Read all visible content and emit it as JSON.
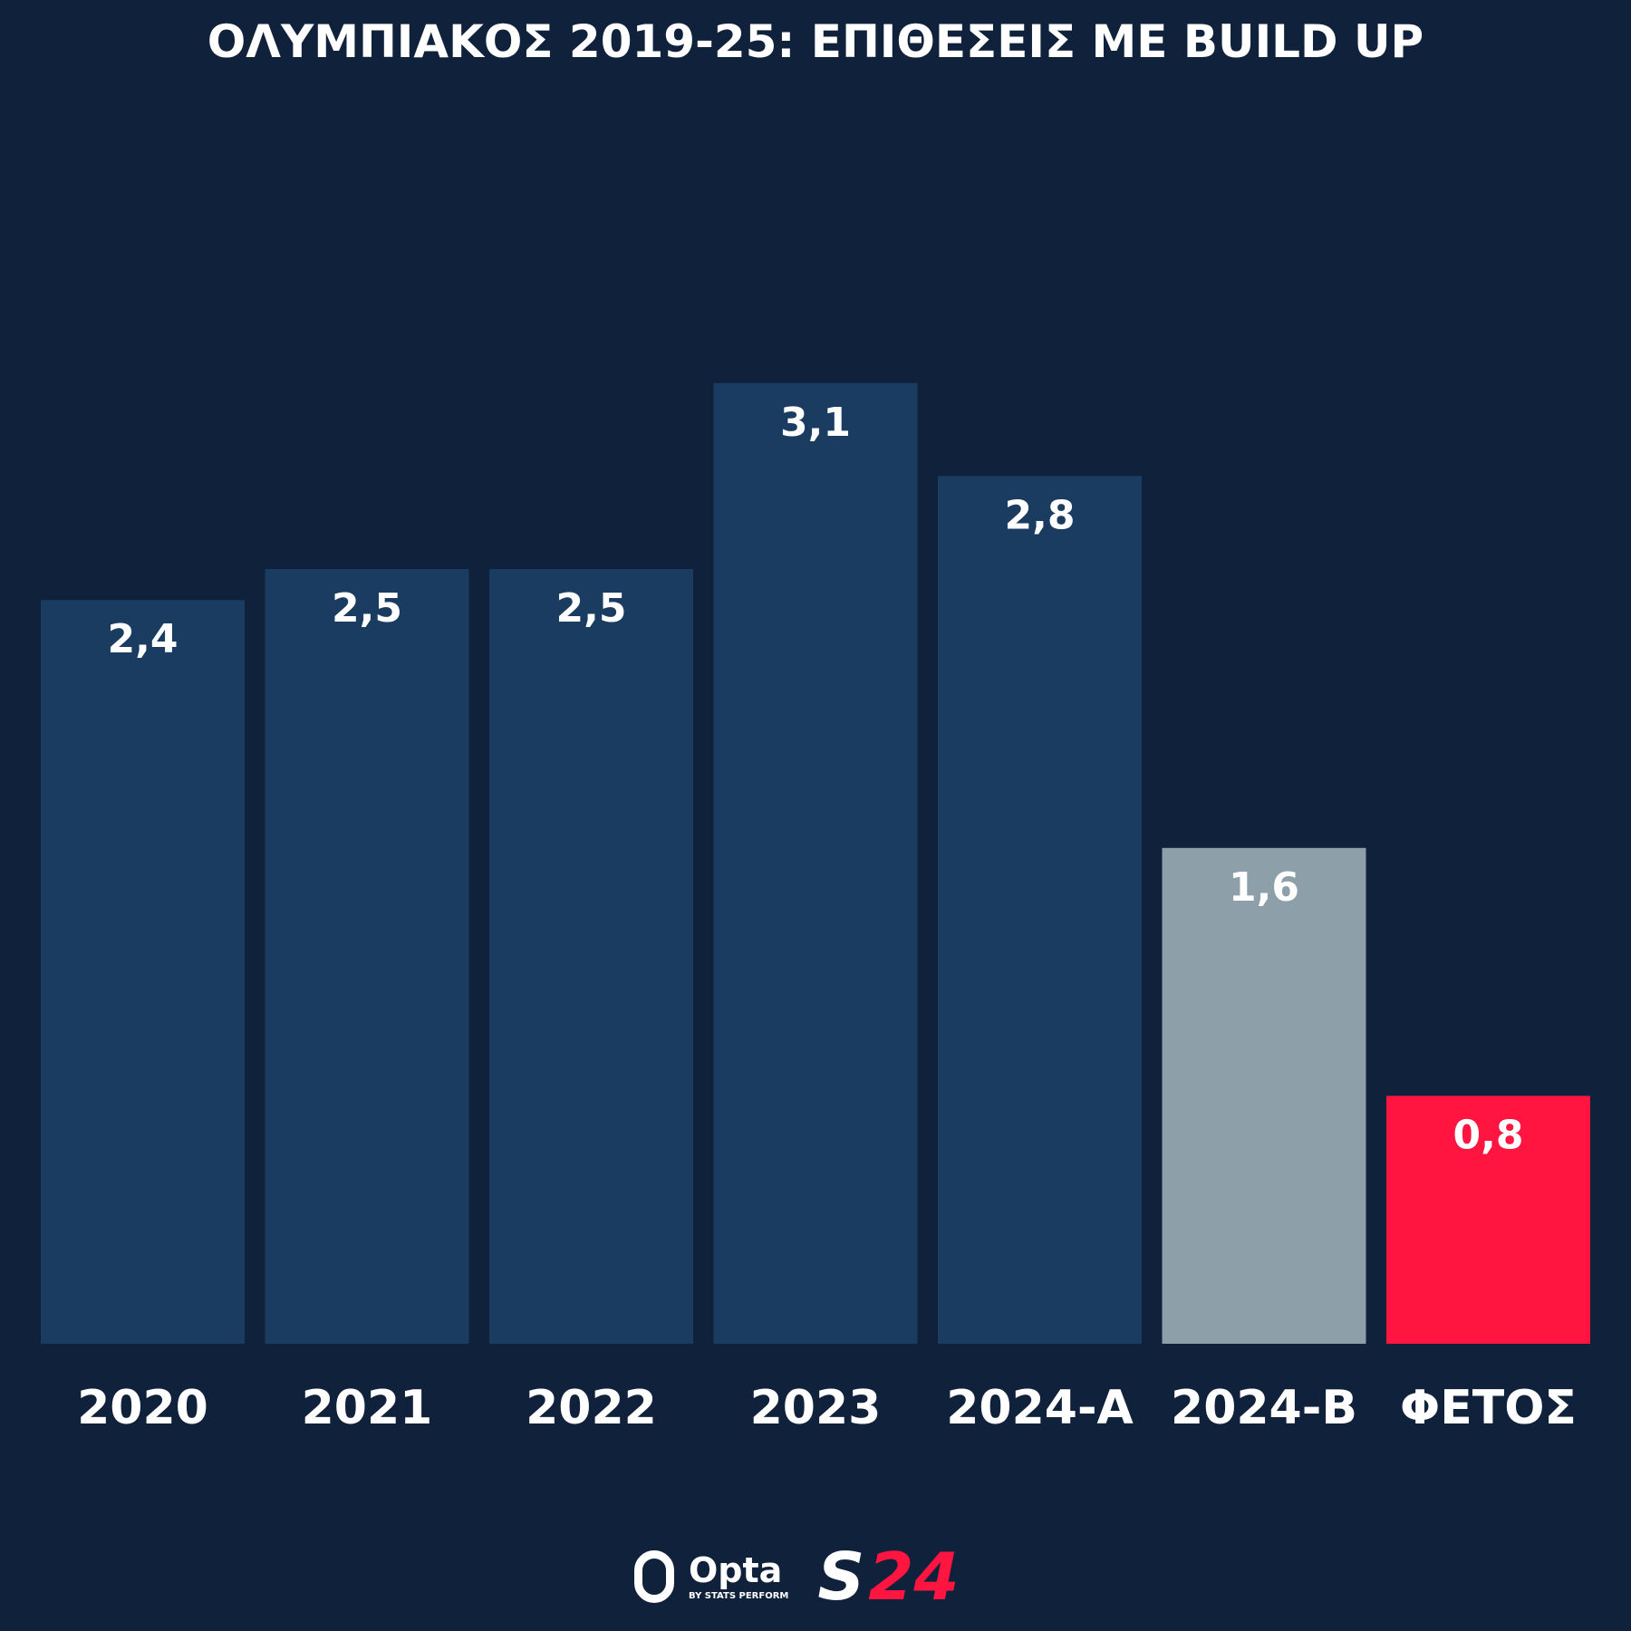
{
  "chart_data": {
    "type": "bar",
    "title": "ΟΛΥΜΠΙΑΚΟΣ 2019-25: ΕΠΙΘΕΣΕΙΣ ΜΕ BUILD UP",
    "categories": [
      "2020",
      "2021",
      "2022",
      "2023",
      "2024-A",
      "2024-B",
      "ΦΕΤΟΣ"
    ],
    "values": [
      2.4,
      2.5,
      2.5,
      3.1,
      2.8,
      1.6,
      0.8
    ],
    "value_labels": [
      "2,4",
      "2,5",
      "2,5",
      "3,1",
      "2,8",
      "1,6",
      "0,8"
    ],
    "colors": [
      "#1a3c60",
      "#1a3c60",
      "#1a3c60",
      "#1a3c60",
      "#1a3c60",
      "#8d9fa8",
      "#ff153f"
    ],
    "xlabel": "",
    "ylabel": "",
    "ylim": [
      0,
      3.1
    ],
    "grid": false
  },
  "logos": {
    "opta": "Opta",
    "opta_sub": "BY STATS PERFORM",
    "s24_s": "S",
    "s24_num": "24"
  }
}
